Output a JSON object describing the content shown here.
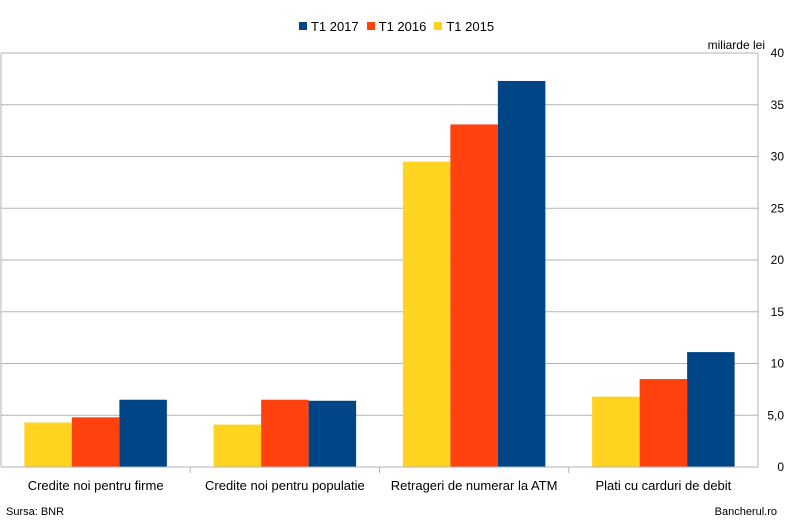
{
  "chart_data": {
    "type": "bar",
    "categories": [
      "Credite noi pentru firme",
      "Credite noi pentru populatie",
      "Retrageri de numerar la ATM",
      "Plati cu carduri de debit"
    ],
    "series": [
      {
        "name": "T1 2015",
        "color": "#FFD320",
        "values": [
          4.3,
          4.1,
          29.5,
          6.8
        ]
      },
      {
        "name": "T1 2016",
        "color": "#FF420E",
        "values": [
          4.8,
          6.5,
          33.1,
          8.5
        ]
      },
      {
        "name": "T1 2017",
        "color": "#004586",
        "values": [
          6.5,
          6.4,
          37.3,
          11.1
        ]
      }
    ],
    "legend_order": [
      "T1 2017",
      "T1 2016",
      "T1 2015"
    ],
    "legend_position": "top-center",
    "yaxis_position": "right",
    "ylim": [
      0,
      40
    ],
    "yticks": [
      0,
      5,
      10,
      15,
      20,
      25,
      30,
      35,
      40
    ],
    "ytick_labels": [
      "0",
      "5,0",
      "10",
      "15",
      "20",
      "25",
      "30",
      "35",
      "40"
    ],
    "ylabel": "miliarde lei",
    "grid": true
  },
  "footer": {
    "source": "Sursa: BNR",
    "brand": "Bancherul.ro"
  }
}
